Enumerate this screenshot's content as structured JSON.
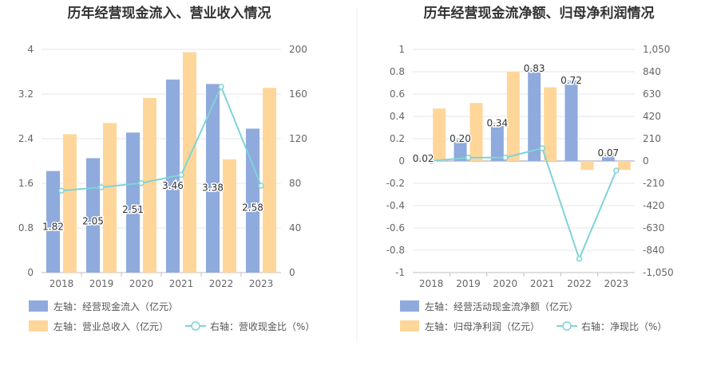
{
  "colors": {
    "blue": "#8faadc",
    "orange": "#ffd699",
    "line": "#7fd3d8",
    "grid": "#e6e6ee",
    "axis": "#bfbfbf"
  },
  "chart_data": [
    {
      "type": "bar",
      "title": "历年经营现金流入、营业收入情况",
      "categories": [
        "2018",
        "2019",
        "2020",
        "2021",
        "2022",
        "2023"
      ],
      "left_axis": {
        "ylim": [
          0,
          4
        ],
        "ticks": [
          "0",
          "0.8",
          "1.6",
          "2.4",
          "3.2",
          "4"
        ]
      },
      "right_axis": {
        "ylim": [
          0,
          200
        ],
        "ticks": [
          "0",
          "40",
          "80",
          "120",
          "160",
          "200"
        ]
      },
      "series": [
        {
          "name": "左轴：经营现金流入（亿元）",
          "kind": "bar",
          "axis": "left",
          "color": "#8faadc",
          "values": [
            1.82,
            2.05,
            2.51,
            3.46,
            3.38,
            2.58
          ],
          "labels": [
            "1.82",
            "2.05",
            "2.51",
            "3.46",
            "3.38",
            "2.58"
          ]
        },
        {
          "name": "左轴：营业总收入（亿元）",
          "kind": "bar",
          "axis": "left",
          "color": "#ffd699",
          "values": [
            2.48,
            2.68,
            3.13,
            3.95,
            2.03,
            3.31
          ]
        },
        {
          "name": "右轴：营收现金比（%）",
          "kind": "line",
          "axis": "right",
          "color": "#7fd3d8",
          "values": [
            73.4,
            76.5,
            80.2,
            87.6,
            166.5,
            77.9
          ]
        }
      ]
    },
    {
      "type": "bar",
      "title": "历年经营现金流净额、归母净利润情况",
      "categories": [
        "2018",
        "2019",
        "2020",
        "2021",
        "2022",
        "2023"
      ],
      "left_axis": {
        "ylim": [
          -1,
          1
        ],
        "ticks": [
          "-1",
          "-0.8",
          "-0.6",
          "-0.4",
          "-0.2",
          "0",
          "0.2",
          "0.4",
          "0.6",
          "0.8",
          "1"
        ]
      },
      "right_axis": {
        "ylim": [
          -1050,
          1050
        ],
        "ticks": [
          "-1,050",
          "-840",
          "-630",
          "-420",
          "-210",
          "0",
          "210",
          "420",
          "630",
          "840",
          "1,050"
        ]
      },
      "series": [
        {
          "name": "左轴：经营活动现金流净额（亿元）",
          "kind": "bar",
          "axis": "left",
          "color": "#8faadc",
          "values": [
            0.02,
            0.2,
            0.34,
            0.83,
            0.72,
            0.07
          ],
          "labels": [
            "0.02",
            "0.20",
            "0.34",
            "0.83",
            "0.72",
            "0.07"
          ]
        },
        {
          "name": "左轴：归母净利润（亿元）",
          "kind": "bar",
          "axis": "left",
          "color": "#ffd699",
          "values": [
            0.47,
            0.52,
            0.8,
            0.66,
            -0.08,
            -0.08
          ]
        },
        {
          "name": "右轴：净现比（%）",
          "kind": "line",
          "axis": "right",
          "color": "#7fd3d8",
          "values": [
            0,
            32,
            32,
            120,
            -920,
            -90
          ]
        }
      ]
    }
  ]
}
